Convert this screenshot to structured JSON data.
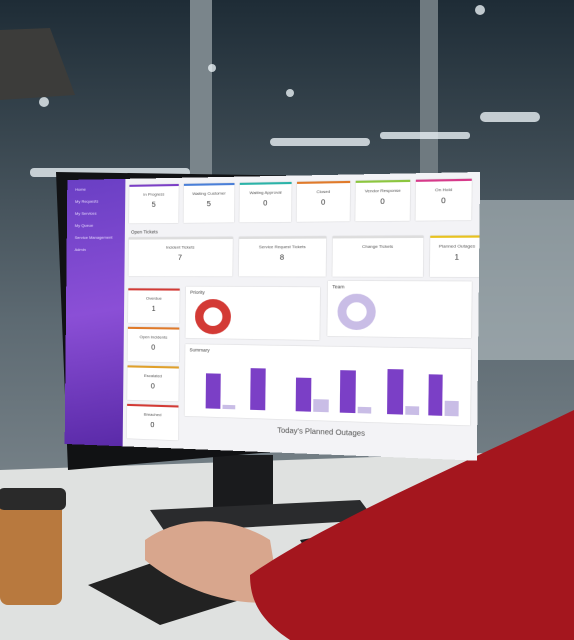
{
  "sidebar": {
    "items": [
      "Home",
      "My Requests",
      "My Services",
      "My Queue",
      "Service Management",
      "Admin"
    ]
  },
  "status_cards": [
    {
      "label": "In Progress",
      "value": 5
    },
    {
      "label": "Waiting Customer",
      "value": 5
    },
    {
      "label": "Waiting Approval",
      "value": 0
    },
    {
      "label": "Closed",
      "value": 0
    },
    {
      "label": "Vendor Response",
      "value": 0
    },
    {
      "label": "On Hold",
      "value": 0
    }
  ],
  "open_tickets": {
    "title": "Open Tickets",
    "cards": [
      {
        "label": "Incident Tickets",
        "value": 7
      },
      {
        "label": "Service Request Tickets",
        "value": 8
      },
      {
        "label": "Change Tickets"
      }
    ],
    "outage_card": {
      "label": "Planned Outages",
      "value": 1
    }
  },
  "side_cards": [
    {
      "label": "Overdue",
      "value": 1
    },
    {
      "label": "Open Incidents",
      "value": 0
    },
    {
      "label": "Escalated",
      "value": 0
    },
    {
      "label": "Breached",
      "value": 0
    }
  ],
  "panels": {
    "priority": "Priority",
    "team": "Team",
    "summary": "Summary"
  },
  "footer": "Today's Planned Outages"
}
